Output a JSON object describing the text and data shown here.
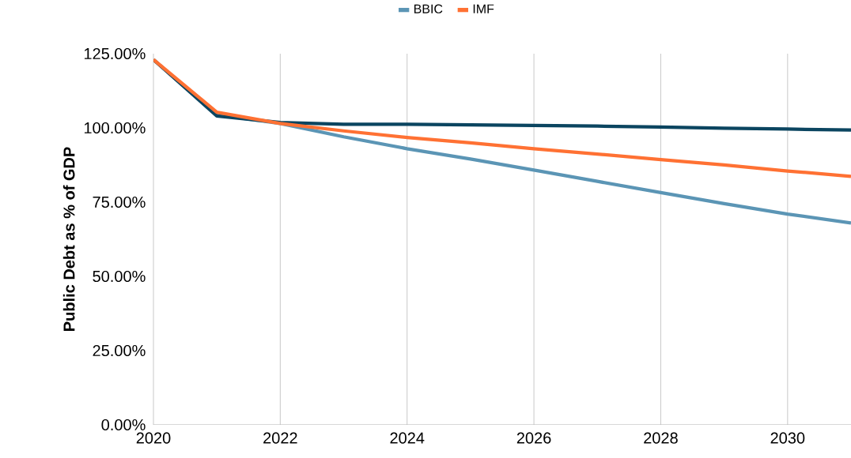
{
  "chart_data": {
    "type": "line",
    "ylabel": "Public Debt as % of GDP",
    "x": [
      2020,
      2021,
      2022,
      2023,
      2024,
      2025,
      2026,
      2027,
      2028,
      2029,
      2030,
      2031
    ],
    "series": [
      {
        "name": "BBIC",
        "color": "#5b95b5",
        "values": [
          123,
          104.5,
          101.5,
          97,
          93,
          89.5,
          85.8,
          82,
          78.2,
          74.5,
          71,
          68
        ]
      },
      {
        "color": "#0b4560",
        "values": [
          123,
          104,
          101.8,
          101.2,
          101.2,
          101,
          100.8,
          100.6,
          100.3,
          99.9,
          99.6,
          99.3
        ]
      },
      {
        "name": "IMF",
        "color": "#ff7133",
        "values": [
          123,
          105.3,
          101.5,
          99,
          96.8,
          95,
          93,
          91.2,
          89.3,
          87.5,
          85.5,
          83.7
        ]
      }
    ],
    "xlim": [
      2020,
      2031
    ],
    "xticks": [
      2020,
      2022,
      2024,
      2026,
      2028,
      2030
    ],
    "ylim": [
      0,
      125
    ],
    "yticks": [
      {
        "value": 0,
        "label": "0.00%"
      },
      {
        "value": 25,
        "label": "25.00%"
      },
      {
        "value": 50,
        "label": "50.00%"
      },
      {
        "value": 75,
        "label": "75.00%"
      },
      {
        "value": 100,
        "label": "100.00%"
      },
      {
        "value": 125,
        "label": "125.00%"
      }
    ],
    "grid": "x",
    "legend": "top",
    "marker": "none",
    "line_style": "solid"
  }
}
